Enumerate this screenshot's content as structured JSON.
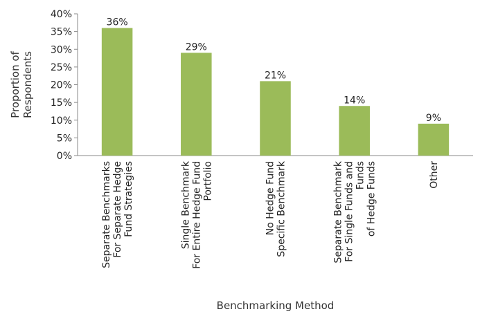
{
  "chart_data": {
    "type": "bar",
    "categories": [
      [
        "Separate Benchmarks",
        "For Separate Hedge",
        "Fund Strategies"
      ],
      [
        "Single Benchmark",
        "For Entire Hedge Fund",
        "Portfolio"
      ],
      [
        "No Hedge Fund",
        "Specific Benchmark"
      ],
      [
        "Separate Benchmark",
        "For Single Funds and",
        "Funds",
        "of Hedge Funds"
      ],
      [
        "Other"
      ]
    ],
    "values": [
      36,
      29,
      21,
      14,
      9
    ],
    "value_format": "percent",
    "data_labels": [
      "36%",
      "29%",
      "21%",
      "14%",
      "9%"
    ],
    "title": "",
    "xlabel": "Benchmarking Method",
    "ylabel": [
      "Proportion of",
      "Respondents"
    ],
    "ylim": [
      0,
      40
    ],
    "yticks": [
      "0%",
      "5%",
      "10%",
      "15%",
      "20%",
      "25%",
      "30%",
      "35%",
      "40%"
    ],
    "grid": false,
    "legend": "none",
    "bar_color": "#9bbb59"
  }
}
